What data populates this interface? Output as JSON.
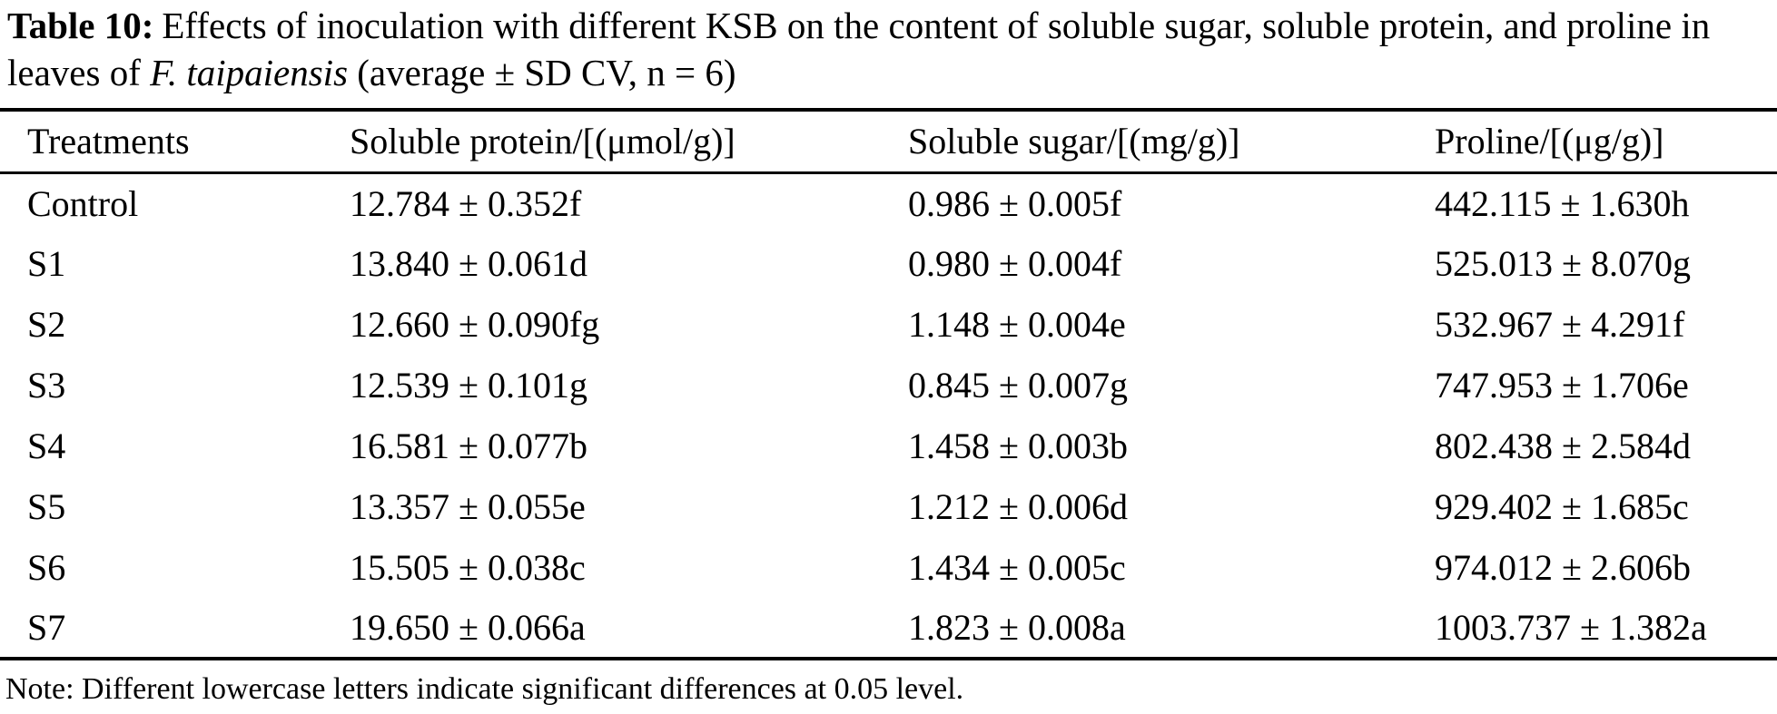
{
  "caption": {
    "label": "Table 10:",
    "text_before_italic": "Effects of inoculation with different KSB on the content of soluble sugar, soluble protein, and proline in leaves of ",
    "italic_text": "F. taipaiensis",
    "text_after_italic": " (average ± SD CV, n = 6)"
  },
  "table": {
    "headers": [
      "Treatments",
      "Soluble protein/[(μmol/g)]",
      "Soluble sugar/[(mg/g)]",
      "Proline/[(μg/g)]"
    ],
    "rows": [
      {
        "treatment": "Control",
        "protein": "12.784 ± 0.352f",
        "sugar": "0.986 ± 0.005f",
        "proline": "442.115 ± 1.630h"
      },
      {
        "treatment": "S1",
        "protein": "13.840 ± 0.061d",
        "sugar": "0.980 ± 0.004f",
        "proline": "525.013 ± 8.070g"
      },
      {
        "treatment": "S2",
        "protein": "12.660 ± 0.090fg",
        "sugar": "1.148 ± 0.004e",
        "proline": "532.967 ± 4.291f"
      },
      {
        "treatment": "S3",
        "protein": "12.539 ± 0.101g",
        "sugar": "0.845 ± 0.007g",
        "proline": "747.953 ± 1.706e"
      },
      {
        "treatment": "S4",
        "protein": "16.581 ± 0.077b",
        "sugar": "1.458 ± 0.003b",
        "proline": "802.438 ± 2.584d"
      },
      {
        "treatment": "S5",
        "protein": "13.357 ± 0.055e",
        "sugar": "1.212 ± 0.006d",
        "proline": "929.402 ± 1.685c"
      },
      {
        "treatment": "S6",
        "protein": "15.505 ± 0.038c",
        "sugar": "1.434 ± 0.005c",
        "proline": "974.012 ± 2.606b"
      },
      {
        "treatment": "S7",
        "protein": "19.650 ± 0.066a",
        "sugar": "1.823 ± 0.008a",
        "proline": "1003.737 ± 1.382a"
      }
    ]
  },
  "note": "Note: Different lowercase letters indicate significant differences at 0.05 level.",
  "colors": {
    "background": "#ffffff",
    "text": "#000000",
    "rule": "#000000"
  }
}
